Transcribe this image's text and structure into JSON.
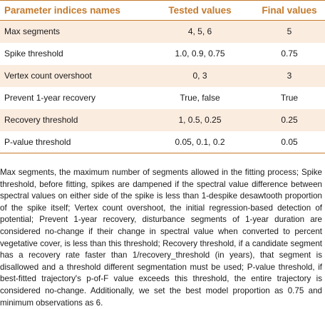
{
  "table": {
    "headers": [
      "Parameter indices names",
      "Tested values",
      "Final values"
    ],
    "rows": [
      {
        "name": "Max segments",
        "tested": "4, 5, 6",
        "final": "5"
      },
      {
        "name": "Spike threshold",
        "tested": "1.0, 0.9, 0.75",
        "final": "0.75"
      },
      {
        "name": "Vertex count overshoot",
        "tested": "0, 3",
        "final": "3"
      },
      {
        "name": "Prevent 1-year recovery",
        "tested": "True, false",
        "final": "True"
      },
      {
        "name": "Recovery threshold",
        "tested": "1, 0.5, 0.25",
        "final": "0.25"
      },
      {
        "name": "P-value threshold",
        "tested": "0.05, 0.1, 0.2",
        "final": "0.05"
      }
    ]
  },
  "footnote": "Max segments, the maximum number of segments allowed in the fitting process; Spike threshold, before fitting, spikes are dampened if the spectral value difference between spectral values on either side of the spike is less than 1-despike desawtooth proportion of the spike itself; Vertex count overshoot, the initial regression-based detection of potential; Prevent 1-year recovery, disturbance segments of 1-year duration are considered no-change if their change in spectral value when converted to percent vegetative cover, is less than this threshold; Recovery threshold, if a candidate segment has a recovery rate faster than 1/recovery_threshold (in years), that segment is disallowed and a threshold different segmentation must be used; P-value threshold, if best-fitted trajectory's p-of-F value exceeds this threshold, the entire trajectory is considered no-change. Additionally, we set the best model proportion as 0.75 and minimum observations as 6.",
  "colors": {
    "accent": "#c47a2c",
    "stripe": "#fbece0",
    "text": "#1a1a1a"
  }
}
